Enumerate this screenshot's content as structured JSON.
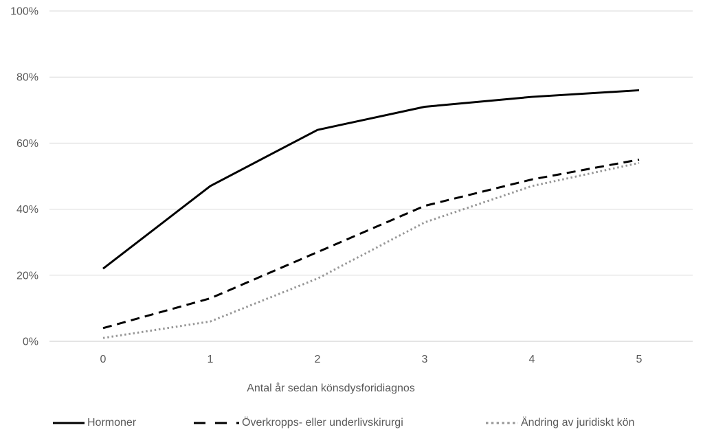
{
  "chart_data": {
    "type": "line",
    "title": "",
    "x": [
      0,
      1,
      2,
      3,
      4,
      5
    ],
    "xtick_labels": [
      "0",
      "1",
      "2",
      "3",
      "4",
      "5"
    ],
    "xlabel": "Antal år sedan könsdysforidiagnos",
    "ylabel": "",
    "ylim": [
      0,
      100
    ],
    "yticks": [
      0,
      20,
      40,
      60,
      80,
      100
    ],
    "ytick_labels": [
      "0%",
      "20%",
      "40%",
      "60%",
      "80%",
      "100%"
    ],
    "grid": "horizontal",
    "legend_position": "bottom",
    "series": [
      {
        "name": "Hormoner",
        "values": [
          22,
          47,
          64,
          71,
          74,
          76
        ],
        "line_style": "solid",
        "color": "#000000"
      },
      {
        "name": "Överkropps- eller underlivskirurgi",
        "values": [
          4,
          13,
          27,
          41,
          49,
          55
        ],
        "line_style": "dashed",
        "color": "#000000"
      },
      {
        "name": "Ändring av juridiskt kön",
        "values": [
          1,
          6,
          19,
          36,
          47,
          54
        ],
        "line_style": "dotted",
        "color": "#969696"
      }
    ]
  },
  "colors": {
    "text": "#595959",
    "gridline": "#d9d9d9",
    "baseline": "#c9c9c9",
    "background": "#ffffff"
  }
}
